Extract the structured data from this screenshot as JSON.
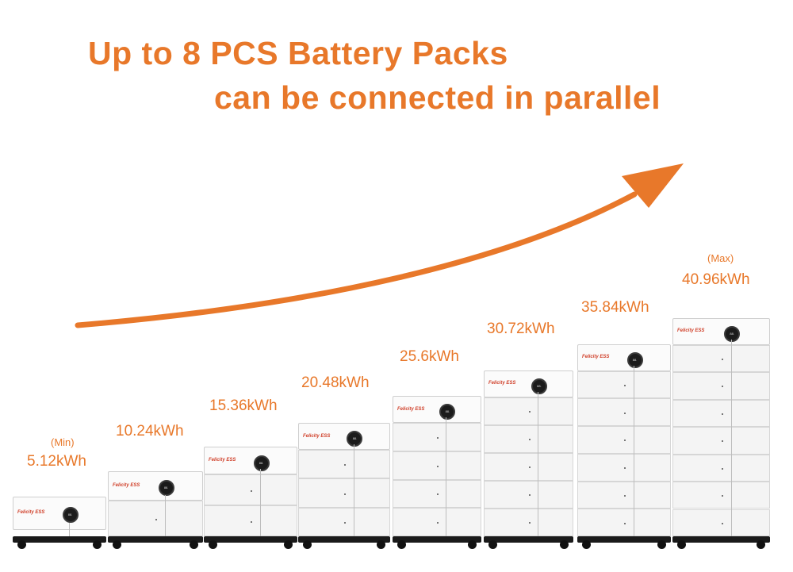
{
  "headline": {
    "line1": "Up to 8 PCS Battery Packs",
    "line2": "can be connected in parallel"
  },
  "brand": "Felicity ESS",
  "display_text": "88.",
  "accent_color": "#e8782a",
  "configs": [
    {
      "capacity": "5.12kWh",
      "note": "(Min)",
      "modules": 1
    },
    {
      "capacity": "10.24kWh",
      "note": "",
      "modules": 2
    },
    {
      "capacity": "15.36kWh",
      "note": "",
      "modules": 3
    },
    {
      "capacity": "20.48kWh",
      "note": "",
      "modules": 4
    },
    {
      "capacity": "25.6kWh",
      "note": "",
      "modules": 5
    },
    {
      "capacity": "30.72kWh",
      "note": "",
      "modules": 6
    },
    {
      "capacity": "35.84kWh",
      "note": "",
      "modules": 7
    },
    {
      "capacity": "40.96kWh",
      "note": "(Max)",
      "modules": 8
    }
  ]
}
